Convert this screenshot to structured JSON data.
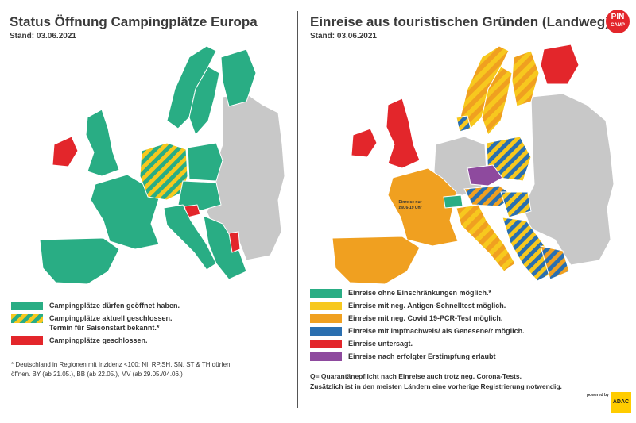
{
  "left": {
    "title": "Status Öffnung Campingplätze Europa",
    "date": "Stand: 03.06.2021",
    "legend": [
      {
        "label": "Campingplätze dürfen geöffnet haben.",
        "color": "#29ad84"
      },
      {
        "label": "Campingplätze aktuell geschlossen.",
        "label2": "Termin für Saisonstart bekannt.*",
        "color": "stripes-yellow-green"
      },
      {
        "label": "Campingplätze geschlossen.",
        "color": "#e3262b"
      }
    ],
    "footnote_line1": "* Deutschland in Regionen mit Inzidenz <100:  NI, RP,SH, SN, ST & TH dürfen",
    "footnote_line2": "öffnen. BY (ab 21.05.), BB (ab 22.05.), MV (ab 29.05./04.06.)"
  },
  "right": {
    "title": "Einreise aus touristischen Gründen (Landweg)",
    "date": "Stand: 03.06.2021",
    "map_label_line1": "Einreise nur",
    "map_label_line2": "zw. 6-19 Uhr",
    "legend": [
      {
        "label": "Einreise ohne Einschränkungen möglich.*",
        "color": "#29ad84"
      },
      {
        "label": "Einreise mit neg. Antigen-Schnelltest möglich.",
        "color": "#f7c81e"
      },
      {
        "label": "Einreise mit neg. Covid 19-PCR-Test möglich.",
        "color": "#f0a020"
      },
      {
        "label": "Einreise mit Impfnachweis/ als Genesene/r möglich.",
        "color": "#2a6fb0"
      },
      {
        "label": "Einreise untersagt.",
        "color": "#e3262b"
      },
      {
        "label": "Einreise nach erfolgter Erstimpfung erlaubt",
        "color": "#8e4a9e"
      }
    ],
    "quarantine_line1": "Q= Quarantänepflicht nach Einreise auch trotz neg. Corona-Tests.",
    "quarantine_line2": "Zusätzlich ist in den meisten Ländern eine vorherige Registrierung notwendig."
  },
  "logo": {
    "line1": "PIN",
    "line2": "CAMP"
  },
  "powered_by": "powered by",
  "adac": "ADAC",
  "colors": {
    "green": "#29ad84",
    "yellow": "#f7c81e",
    "orange": "#f0a020",
    "blue": "#2a6fb0",
    "red": "#e3262b",
    "purple": "#8e4a9e",
    "grey": "#c8c8c8"
  }
}
